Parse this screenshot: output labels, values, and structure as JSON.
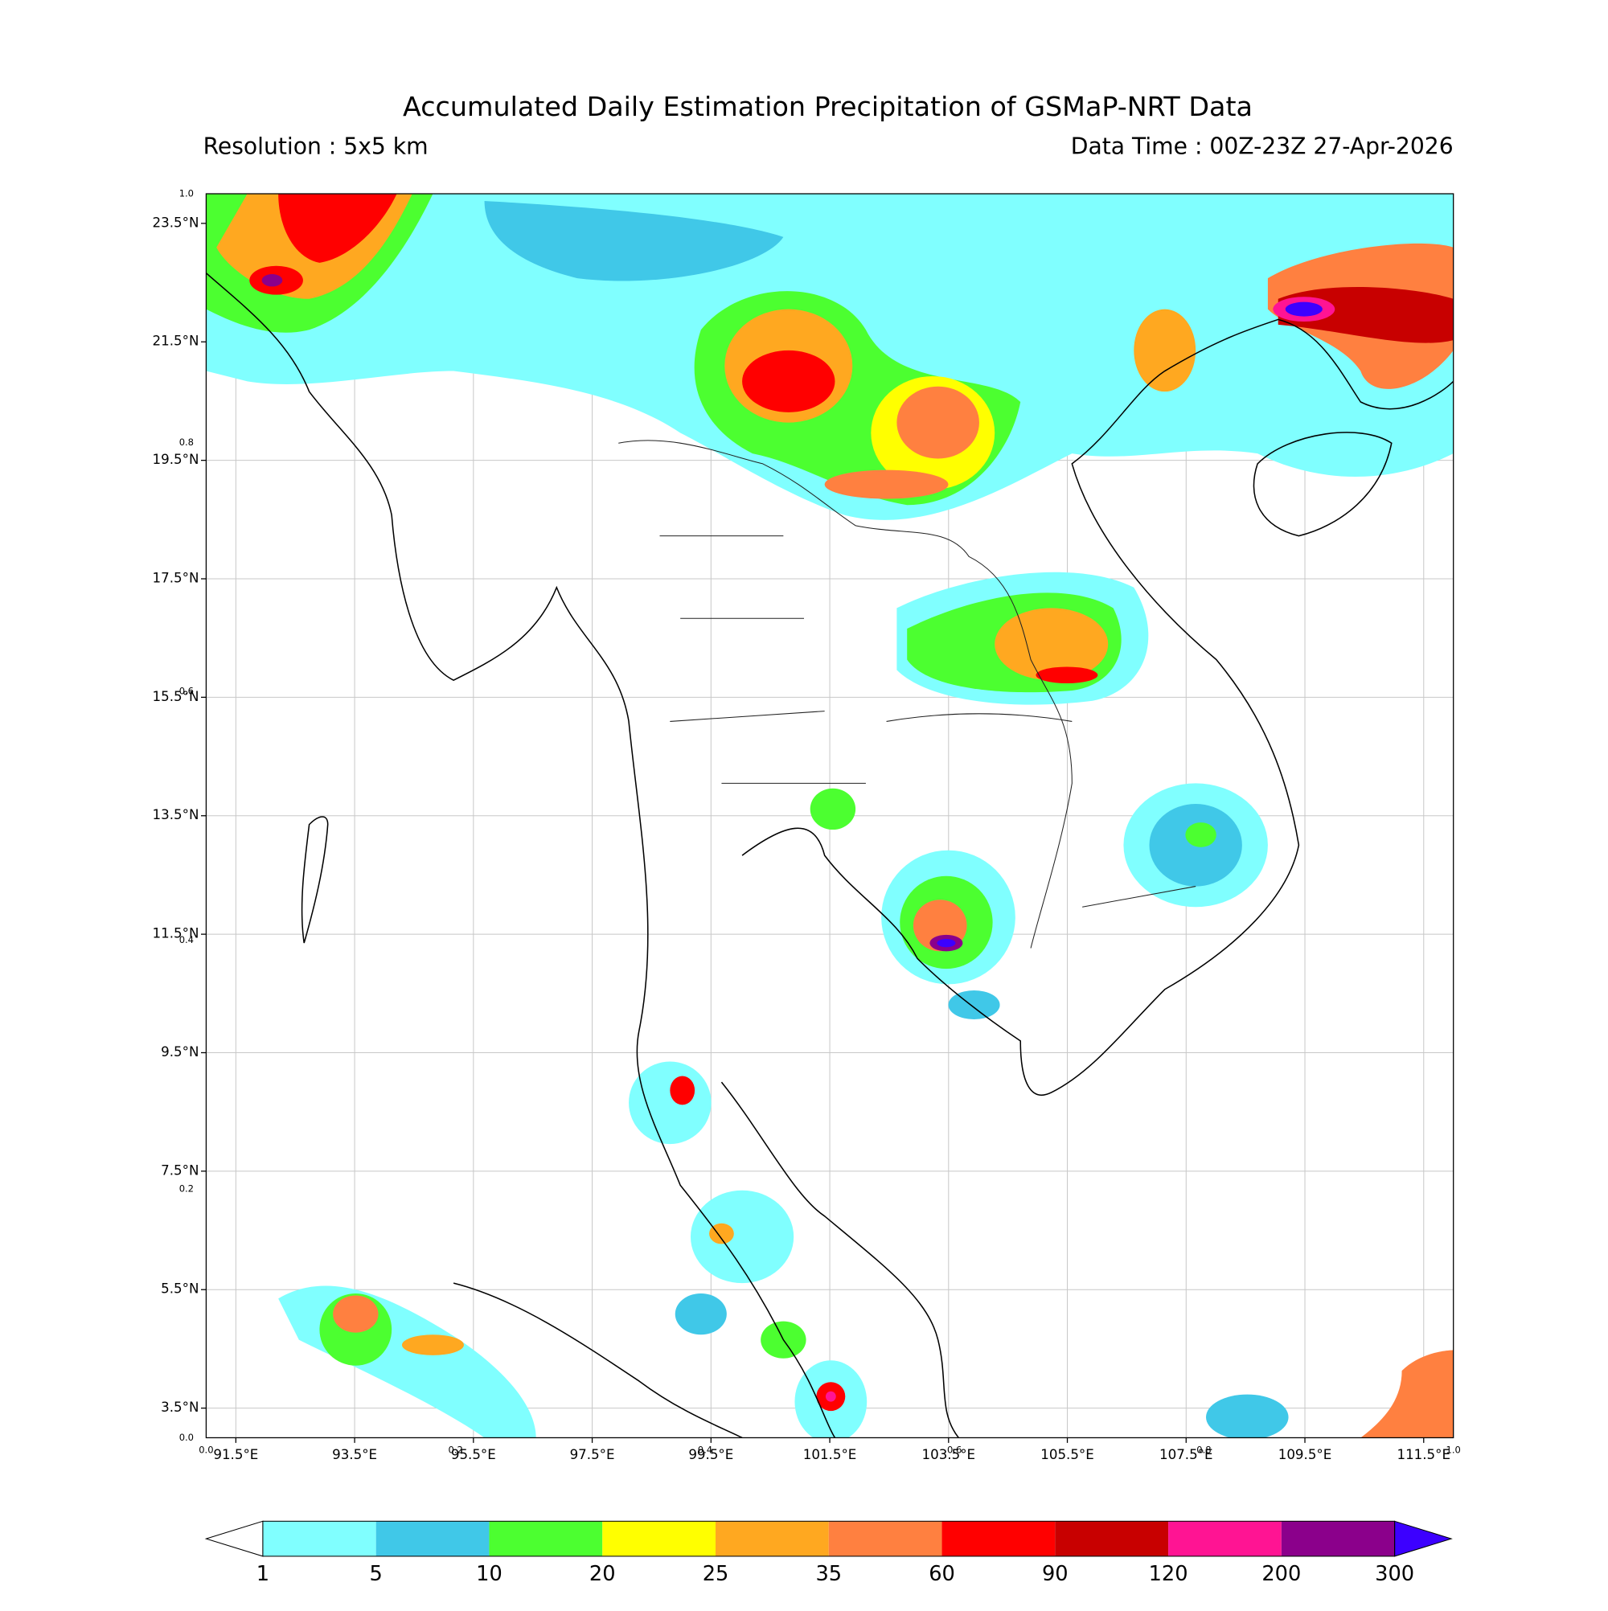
{
  "map": {
    "title": "Accumulated Daily Estimation Precipitation of GSMaP-NRT Data",
    "resolution": "Resolution : 5x5 km",
    "data_time": "Data Time : 00Z-23Z 27-Apr-2026",
    "lonlim": [
      91,
      112
    ],
    "latlim": [
      3,
      24
    ],
    "lon_ticks": [
      {
        "value": 91.5,
        "label": "91.5°E"
      },
      {
        "value": 93.5,
        "label": "93.5°E"
      },
      {
        "value": 95.5,
        "label": "95.5°E"
      },
      {
        "value": 97.5,
        "label": "97.5°E"
      },
      {
        "value": 99.5,
        "label": "99.5°E"
      },
      {
        "value": 101.5,
        "label": "101.5°E"
      },
      {
        "value": 103.5,
        "label": "103.5°E"
      },
      {
        "value": 105.5,
        "label": "105.5°E"
      },
      {
        "value": 107.5,
        "label": "107.5°E"
      },
      {
        "value": 109.5,
        "label": "109.5°E"
      },
      {
        "value": 111.5,
        "label": "111.5°E"
      }
    ],
    "lat_ticks": [
      {
        "value": 23.5,
        "label": "23.5°N"
      },
      {
        "value": 21.5,
        "label": "21.5°N"
      },
      {
        "value": 19.5,
        "label": "19.5°N"
      },
      {
        "value": 17.5,
        "label": "17.5°N"
      },
      {
        "value": 15.5,
        "label": "15.5°N"
      },
      {
        "value": 13.5,
        "label": "13.5°N"
      },
      {
        "value": 11.5,
        "label": "11.5°N"
      },
      {
        "value": 9.5,
        "label": "9.5°N"
      },
      {
        "value": 7.5,
        "label": "7.5°N"
      },
      {
        "value": 5.5,
        "label": "5.5°N"
      },
      {
        "value": 3.5,
        "label": "3.5°N"
      }
    ],
    "frame_ticks": [
      {
        "value": 0,
        "label": "0.0"
      },
      {
        "value": 0.2,
        "label": "0.2"
      },
      {
        "value": 0.4,
        "label": "0.4"
      },
      {
        "value": 0.6,
        "label": "0.6"
      },
      {
        "value": 0.8,
        "label": "0.8"
      },
      {
        "value": 1,
        "label": "1.0"
      }
    ],
    "colorbar": {
      "levels": [
        1,
        5,
        10,
        20,
        25,
        35,
        60,
        90,
        120,
        200,
        300
      ],
      "colors": [
        "#80ffff",
        "#40c8e8",
        "#4cff30",
        "#ffff00",
        "#ffa820",
        "#ff8040",
        "#ff0000",
        "#c80000",
        "#ff1493",
        "#8b008b"
      ],
      "under_color": "#ffffff",
      "over_color": "#3c00ff"
    }
  }
}
